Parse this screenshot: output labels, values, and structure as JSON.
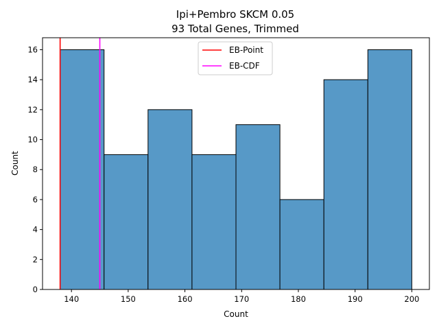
{
  "chart_data": {
    "type": "bar",
    "title_line1": "Ipi+Pembro SKCM 0.05",
    "title_line2": "93 Total Genes, Trimmed",
    "xlabel": "Count",
    "ylabel": "Count",
    "bin_edges": [
      138,
      145.75,
      153.5,
      161.25,
      169,
      176.75,
      184.5,
      192.25,
      200
    ],
    "values": [
      16,
      9,
      12,
      9,
      11,
      6,
      14,
      16
    ],
    "xlim": [
      134.9,
      203.1
    ],
    "ylim": [
      0,
      16.8
    ],
    "xticks": [
      140,
      150,
      160,
      170,
      180,
      190,
      200
    ],
    "yticks": [
      0,
      2,
      4,
      6,
      8,
      10,
      12,
      14,
      16
    ],
    "bar_color": "#5799c7",
    "vlines": [
      {
        "name": "EB-Point",
        "x": 138,
        "color": "#ff0000"
      },
      {
        "name": "EB-CDF",
        "x": 145,
        "color": "#ff00ff"
      }
    ],
    "legend_position": "top-center",
    "grid": false
  }
}
